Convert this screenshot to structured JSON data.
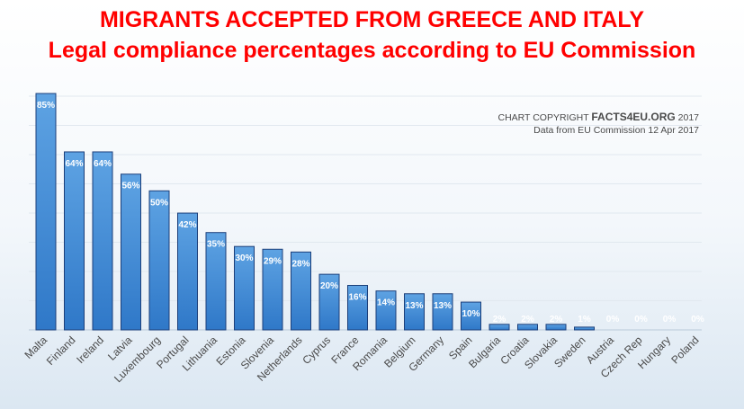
{
  "chart_data": {
    "type": "bar",
    "title": "MIGRANTS ACCEPTED FROM GREECE AND ITALY",
    "subtitle": "Legal compliance percentages according to EU Commission",
    "copyright_prefix": "CHART COPYRIGHT",
    "copyright_brand": "FACTS4EU.ORG",
    "copyright_year": "2017",
    "source_note": "Data from EU Commission 12 Apr 2017",
    "categories": [
      "Malta",
      "Finland",
      "Ireland",
      "Latvia",
      "Luxembourg",
      "Portugal",
      "Lithuania",
      "Estonia",
      "Slovenia",
      "Netherlands",
      "Cyprus",
      "France",
      "Romania",
      "Belgium",
      "Germany",
      "Spain",
      "Bulgaria",
      "Croatia",
      "Slovakia",
      "Sweden",
      "Austria",
      "Czech Rep",
      "Hungary",
      "Poland"
    ],
    "values": [
      85,
      64,
      64,
      56,
      50,
      42,
      35,
      30,
      29,
      28,
      20,
      16,
      14,
      13,
      13,
      10,
      2,
      2,
      2,
      1,
      0,
      0,
      0,
      0
    ],
    "labels": [
      "85%",
      "64%",
      "64%",
      "56%",
      "50%",
      "42%",
      "35%",
      "30%",
      "29%",
      "28%",
      "20%",
      "16%",
      "14%",
      "13%",
      "13%",
      "10%",
      "2%",
      "2%",
      "2%",
      "1%",
      "0%",
      "0%",
      "0%",
      "0%"
    ],
    "ylim": [
      0,
      85
    ],
    "grid": true,
    "colors": {
      "bar_top": "#5ea3e3",
      "bar_bottom": "#2f78c8",
      "bar_stroke": "#1c3f7a",
      "title": "#ff0000"
    }
  }
}
